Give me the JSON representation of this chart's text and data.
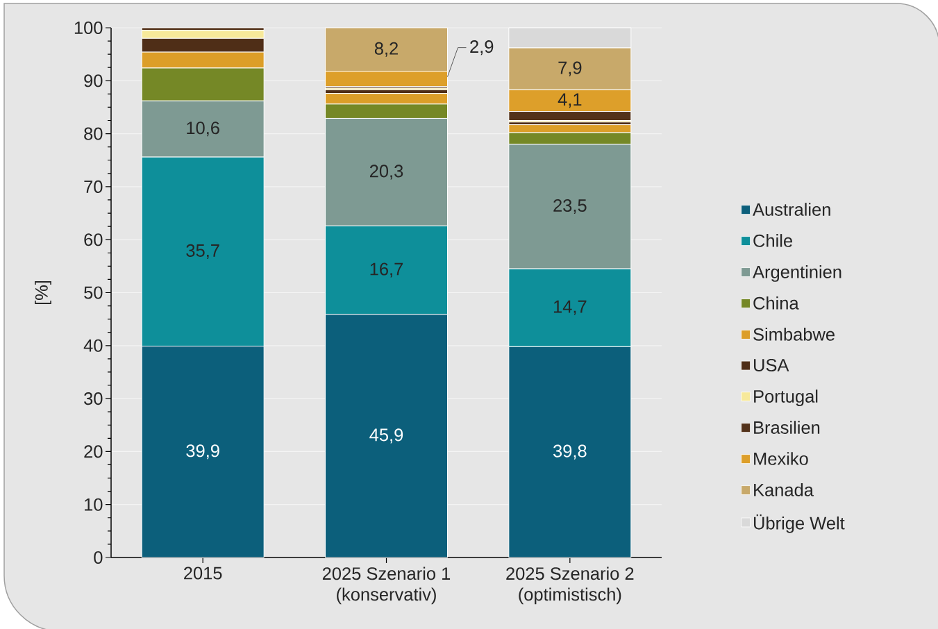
{
  "chart_data": {
    "type": "bar",
    "stacked": true,
    "ylabel": "[%]",
    "categories": [
      "2015",
      "2025 Szenario 1 (konservativ)",
      "2025 Szenario 2 (optimistisch)"
    ],
    "series": [
      {
        "name": "Australien",
        "color": "#0c5f7b",
        "values": [
          39.9,
          45.9,
          39.8
        ],
        "value_labels": [
          "39,9",
          "45,9",
          "39,8"
        ]
      },
      {
        "name": "Chile",
        "color": "#0e8f9a",
        "values": [
          35.7,
          16.7,
          14.7
        ],
        "value_labels": [
          "35,7",
          "16,7",
          "14,7"
        ]
      },
      {
        "name": "Argentinien",
        "color": "#7e9a93",
        "values": [
          10.6,
          20.3,
          23.5
        ],
        "value_labels": [
          "10,6",
          "20,3",
          "23,5"
        ]
      },
      {
        "name": "China",
        "color": "#758826",
        "values": [
          6.2,
          2.7,
          2.2
        ]
      },
      {
        "name": "Simbabwe",
        "color": "#dc9e28",
        "values": [
          3.0,
          2.0,
          1.5
        ]
      },
      {
        "name": "USA",
        "color": "#4f2e17",
        "values": [
          2.6,
          0.7,
          0.5
        ]
      },
      {
        "name": "Portugal",
        "color": "#f7e99a",
        "values": [
          1.5,
          0.3,
          0.3
        ]
      },
      {
        "name": "Brasilien",
        "color": "#53321a",
        "values": [
          0.5,
          0.3,
          1.7
        ]
      },
      {
        "name": "Mexiko",
        "color": "#dd9f2a",
        "values": [
          null,
          2.9,
          4.1
        ],
        "value_labels": [
          null,
          "2,9",
          "4,1"
        ]
      },
      {
        "name": "Kanada",
        "color": "#c8a96a",
        "values": [
          null,
          8.2,
          7.9
        ],
        "value_labels": [
          null,
          "8,2",
          "7,9"
        ]
      },
      {
        "name": "Übrige Welt",
        "color": "#d9d9d9",
        "values": [
          null,
          null,
          3.8
        ]
      }
    ],
    "ylim": [
      0,
      100
    ],
    "yticks": [
      0,
      10,
      20,
      30,
      40,
      50,
      60,
      70,
      80,
      90,
      100
    ],
    "grid": "y",
    "legend": "right"
  }
}
